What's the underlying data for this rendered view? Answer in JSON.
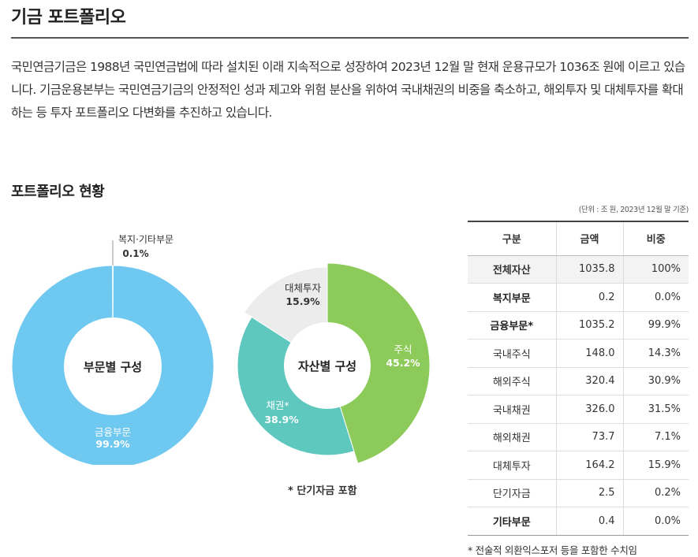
{
  "page": {
    "title": "기금 포트폴리오",
    "intro": "국민연금기금은 1988년 국민연금법에 따라 설치된 이래 지속적으로 성장하여 2023년 12월 말 현재 운용규모가 1036조 원에 이르고 있습니다. 기금운용본부는 국민연금기금의 안정적인 성과 제고와 위험 분산을 위하여 국내채권의 비중을 축소하고, 해외투자 및 대체투자를 확대하는 등 투자 포트폴리오 다변화를 추진하고 있습니다.",
    "section_title": "포트폴리오 현황",
    "chart_note": "* 단기자금 포함",
    "unit_note": "(단위 : 조 원, 2023년 12월 말 기준)",
    "table_note": "* 전술적 외환익스포저 등을 포함한 수치임"
  },
  "chart_data": [
    {
      "type": "pie",
      "variant": "donut",
      "title": "부문별 구성",
      "slices": [
        {
          "label": "금융부문",
          "value_text": "99.9%",
          "value": 99.9,
          "color": "#6ec8f0"
        },
        {
          "label": "복지·기타부문",
          "value_text": "0.1%",
          "value": 0.1,
          "color": "#d8d8d8"
        }
      ]
    },
    {
      "type": "pie",
      "variant": "donut",
      "title": "자산별 구성",
      "slices": [
        {
          "label": "주식",
          "value_text": "45.2%",
          "value": 45.2,
          "color": "#8ccb5a"
        },
        {
          "label": "채권*",
          "value_text": "38.9%",
          "value": 38.9,
          "color": "#5ec8bf"
        },
        {
          "label": "대체투자",
          "value_text": "15.9%",
          "value": 15.9,
          "color": "#ececec"
        }
      ]
    },
    {
      "type": "table",
      "columns": [
        "구분",
        "금액",
        "비중"
      ],
      "rows": [
        {
          "cat": "전체자산",
          "amount": "1035.8",
          "share": "100%",
          "level": "total"
        },
        {
          "cat": "복지부문",
          "amount": "0.2",
          "share": "0.0%",
          "level": "main"
        },
        {
          "cat": "금융부문*",
          "amount": "1035.2",
          "share": "99.9%",
          "level": "main"
        },
        {
          "cat": "국내주식",
          "amount": "148.0",
          "share": "14.3%",
          "level": "sub"
        },
        {
          "cat": "해외주식",
          "amount": "320.4",
          "share": "30.9%",
          "level": "sub"
        },
        {
          "cat": "국내채권",
          "amount": "326.0",
          "share": "31.5%",
          "level": "sub"
        },
        {
          "cat": "해외채권",
          "amount": "73.7",
          "share": "7.1%",
          "level": "sub"
        },
        {
          "cat": "대체투자",
          "amount": "164.2",
          "share": "15.9%",
          "level": "sub"
        },
        {
          "cat": "단기자금",
          "amount": "2.5",
          "share": "0.2%",
          "level": "sub"
        },
        {
          "cat": "기타부문",
          "amount": "0.4",
          "share": "0.0%",
          "level": "main"
        }
      ]
    }
  ]
}
